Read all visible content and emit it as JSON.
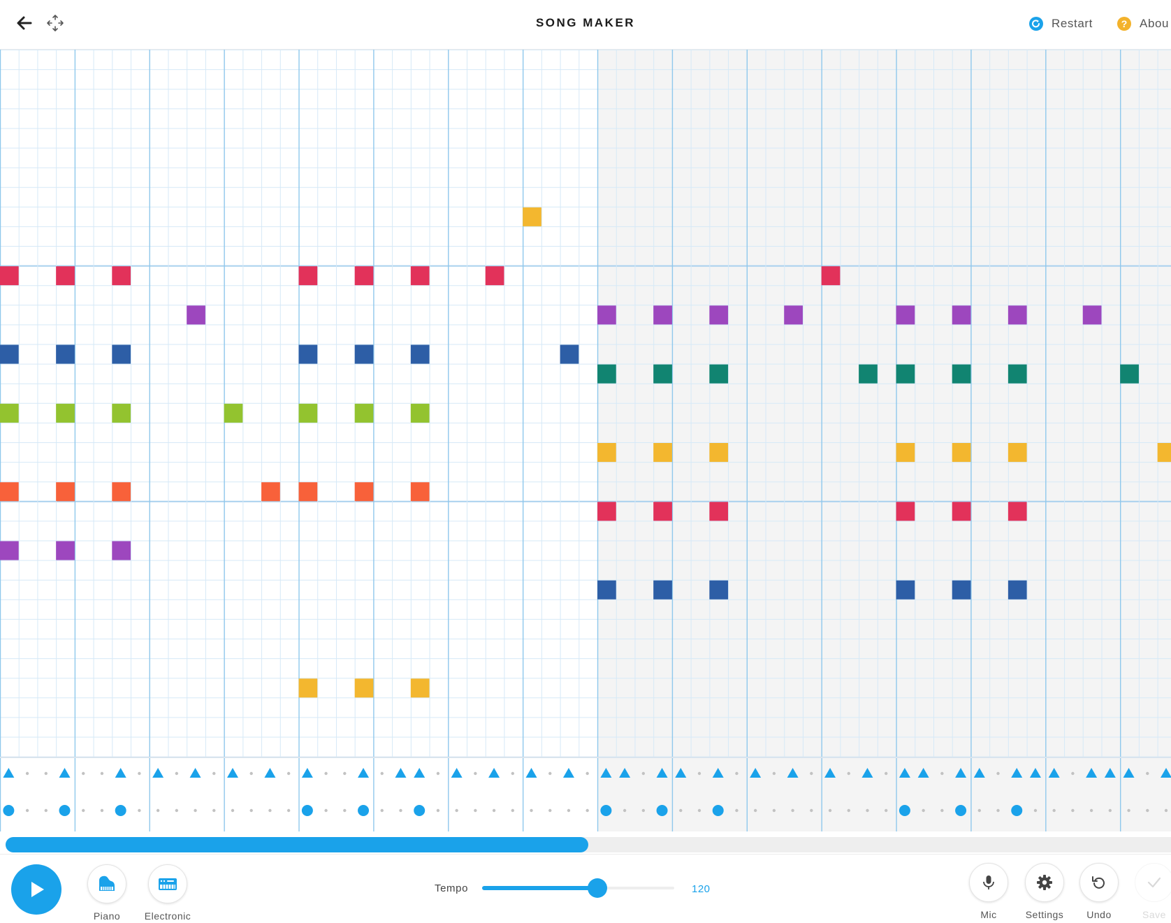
{
  "header": {
    "title": "SONG MAKER",
    "restart_label": "Restart",
    "about_label": "Abou",
    "restart_icon_color": "#1aa2ea",
    "about_icon_color": "#f3b22b"
  },
  "grid": {
    "columns": 63,
    "rows": 36,
    "visible_steps": 63,
    "shaded_bars": [
      4,
      5,
      6,
      7,
      12,
      13,
      14,
      15
    ],
    "colors": {
      "red": "#e2325a",
      "purple": "#9d47be",
      "blue": "#2d5ea6",
      "teal": "#118471",
      "green": "#93c32f",
      "yellow": "#f3b72f",
      "orange": "#f8613a"
    },
    "notes": [
      {
        "step": 0,
        "row": 11,
        "color": "red"
      },
      {
        "step": 3,
        "row": 11,
        "color": "red"
      },
      {
        "step": 6,
        "row": 11,
        "color": "red"
      },
      {
        "step": 16,
        "row": 11,
        "color": "red"
      },
      {
        "step": 19,
        "row": 11,
        "color": "red"
      },
      {
        "step": 22,
        "row": 11,
        "color": "red"
      },
      {
        "step": 26,
        "row": 11,
        "color": "red"
      },
      {
        "step": 44,
        "row": 11,
        "color": "red"
      },
      {
        "step": 28,
        "row": 8,
        "color": "yellow"
      },
      {
        "step": 10,
        "row": 13,
        "color": "purple"
      },
      {
        "step": 32,
        "row": 13,
        "color": "purple"
      },
      {
        "step": 35,
        "row": 13,
        "color": "purple"
      },
      {
        "step": 38,
        "row": 13,
        "color": "purple"
      },
      {
        "step": 42,
        "row": 13,
        "color": "purple"
      },
      {
        "step": 48,
        "row": 13,
        "color": "purple"
      },
      {
        "step": 51,
        "row": 13,
        "color": "purple"
      },
      {
        "step": 54,
        "row": 13,
        "color": "purple"
      },
      {
        "step": 58,
        "row": 13,
        "color": "purple"
      },
      {
        "step": 0,
        "row": 15,
        "color": "blue"
      },
      {
        "step": 3,
        "row": 15,
        "color": "blue"
      },
      {
        "step": 6,
        "row": 15,
        "color": "blue"
      },
      {
        "step": 16,
        "row": 15,
        "color": "blue"
      },
      {
        "step": 19,
        "row": 15,
        "color": "blue"
      },
      {
        "step": 22,
        "row": 15,
        "color": "blue"
      },
      {
        "step": 30,
        "row": 15,
        "color": "blue"
      },
      {
        "step": 32,
        "row": 16,
        "color": "teal"
      },
      {
        "step": 35,
        "row": 16,
        "color": "teal"
      },
      {
        "step": 38,
        "row": 16,
        "color": "teal"
      },
      {
        "step": 46,
        "row": 16,
        "color": "teal"
      },
      {
        "step": 48,
        "row": 16,
        "color": "teal"
      },
      {
        "step": 51,
        "row": 16,
        "color": "teal"
      },
      {
        "step": 54,
        "row": 16,
        "color": "teal"
      },
      {
        "step": 60,
        "row": 16,
        "color": "teal"
      },
      {
        "step": 0,
        "row": 18,
        "color": "green"
      },
      {
        "step": 3,
        "row": 18,
        "color": "green"
      },
      {
        "step": 6,
        "row": 18,
        "color": "green"
      },
      {
        "step": 12,
        "row": 18,
        "color": "green"
      },
      {
        "step": 16,
        "row": 18,
        "color": "green"
      },
      {
        "step": 19,
        "row": 18,
        "color": "green"
      },
      {
        "step": 22,
        "row": 18,
        "color": "green"
      },
      {
        "step": 32,
        "row": 20,
        "color": "yellow"
      },
      {
        "step": 35,
        "row": 20,
        "color": "yellow"
      },
      {
        "step": 38,
        "row": 20,
        "color": "yellow"
      },
      {
        "step": 48,
        "row": 20,
        "color": "yellow"
      },
      {
        "step": 51,
        "row": 20,
        "color": "yellow"
      },
      {
        "step": 54,
        "row": 20,
        "color": "yellow"
      },
      {
        "step": 62,
        "row": 20,
        "color": "yellow"
      },
      {
        "step": 0,
        "row": 22,
        "color": "orange"
      },
      {
        "step": 3,
        "row": 22,
        "color": "orange"
      },
      {
        "step": 6,
        "row": 22,
        "color": "orange"
      },
      {
        "step": 14,
        "row": 22,
        "color": "orange"
      },
      {
        "step": 16,
        "row": 22,
        "color": "orange"
      },
      {
        "step": 19,
        "row": 22,
        "color": "orange"
      },
      {
        "step": 22,
        "row": 22,
        "color": "orange"
      },
      {
        "step": 32,
        "row": 23,
        "color": "red"
      },
      {
        "step": 35,
        "row": 23,
        "color": "red"
      },
      {
        "step": 38,
        "row": 23,
        "color": "red"
      },
      {
        "step": 48,
        "row": 23,
        "color": "red"
      },
      {
        "step": 51,
        "row": 23,
        "color": "red"
      },
      {
        "step": 54,
        "row": 23,
        "color": "red"
      },
      {
        "step": 0,
        "row": 25,
        "color": "purple"
      },
      {
        "step": 3,
        "row": 25,
        "color": "purple"
      },
      {
        "step": 6,
        "row": 25,
        "color": "purple"
      },
      {
        "step": 32,
        "row": 27,
        "color": "blue"
      },
      {
        "step": 35,
        "row": 27,
        "color": "blue"
      },
      {
        "step": 38,
        "row": 27,
        "color": "blue"
      },
      {
        "step": 48,
        "row": 27,
        "color": "blue"
      },
      {
        "step": 51,
        "row": 27,
        "color": "blue"
      },
      {
        "step": 54,
        "row": 27,
        "color": "blue"
      },
      {
        "step": 16,
        "row": 32,
        "color": "yellow"
      },
      {
        "step": 19,
        "row": 32,
        "color": "yellow"
      },
      {
        "step": 22,
        "row": 32,
        "color": "yellow"
      }
    ]
  },
  "percussion": {
    "color": "#1aa2ea",
    "triangles": [
      0,
      3,
      6,
      8,
      10,
      12,
      14,
      16,
      19,
      21,
      22,
      24,
      26,
      28,
      30,
      32,
      33,
      35,
      36,
      38,
      40,
      42,
      44,
      46,
      48,
      49,
      51,
      52,
      54,
      55,
      56,
      58,
      59,
      60,
      62
    ],
    "circles": [
      0,
      3,
      6,
      16,
      19,
      22,
      32,
      35,
      38,
      48,
      51,
      54
    ]
  },
  "scroll": {
    "position": 0.5
  },
  "bottom": {
    "play_color": "#1aa2ea",
    "instruments": [
      {
        "label": "Piano",
        "icon": "piano-icon"
      },
      {
        "label": "Electronic",
        "icon": "synth-keyboard-icon"
      }
    ],
    "tempo_label": "Tempo",
    "tempo_value": "120",
    "tempo_fraction": 0.6,
    "tools": [
      {
        "label": "Mic",
        "icon": "microphone-icon",
        "enabled": true
      },
      {
        "label": "Settings",
        "icon": "gear-icon",
        "enabled": true
      },
      {
        "label": "Undo",
        "icon": "undo-icon",
        "enabled": true
      },
      {
        "label": "Save",
        "icon": "checkmark-icon",
        "enabled": false
      }
    ]
  }
}
